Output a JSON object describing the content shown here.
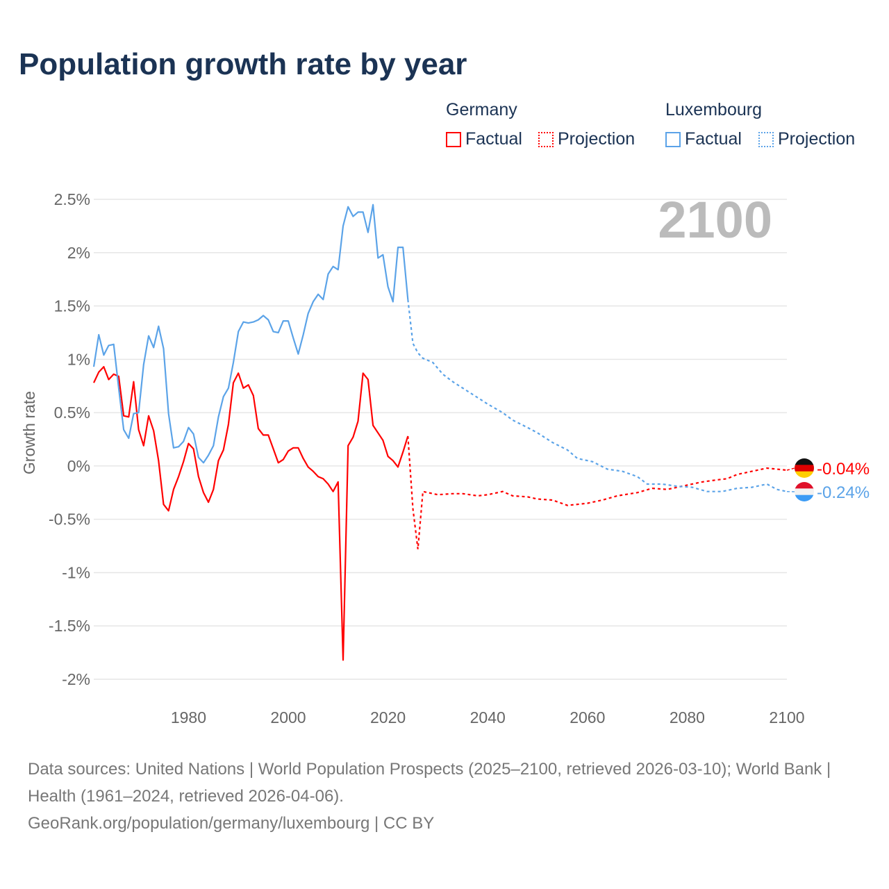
{
  "title": "Population growth rate by year",
  "legend": {
    "groups": [
      {
        "name": "Germany",
        "factual": "Factual",
        "projection": "Projection",
        "color": "#ff0000"
      },
      {
        "name": "Luxembourg",
        "factual": "Factual",
        "projection": "Projection",
        "color": "#5ba3e8"
      }
    ]
  },
  "footer": {
    "sources": "Data sources: United Nations | World Population Prospects (2025–2100, retrieved 2026-03-10); World Bank | Health (1961–2024, retrieved 2026-04-06).",
    "credit": "GeoRank.org/population/germany/luxembourg | CC BY"
  },
  "chart_data": {
    "type": "line",
    "title": "Population growth rate by year",
    "xlabel": "",
    "ylabel": "Growth rate",
    "year_label": "2100",
    "xlim": [
      1961,
      2100
    ],
    "ylim": [
      -2,
      2.5
    ],
    "x_ticks": [
      "1980",
      "2000",
      "2020",
      "2040",
      "2060",
      "2080",
      "2100"
    ],
    "x_tick_values": [
      1980,
      2000,
      2020,
      2040,
      2060,
      2080,
      2100
    ],
    "y_ticks": [
      "2.5%",
      "2%",
      "1.5%",
      "1%",
      "0.5%",
      "0%",
      "-0.5%",
      "-1%",
      "-1.5%",
      "-2%"
    ],
    "y_tick_values": [
      2.5,
      2,
      1.5,
      1,
      0.5,
      0,
      -0.5,
      -1,
      -1.5,
      -2
    ],
    "grid": true,
    "legend_position": "top-right",
    "series": [
      {
        "name": "Germany",
        "color": "#ff0000",
        "end_label": "-0.04%",
        "factual": {
          "start_year": 1961,
          "values": [
            0.78,
            0.88,
            0.93,
            0.81,
            0.86,
            0.84,
            0.47,
            0.46,
            0.79,
            0.34,
            0.19,
            0.47,
            0.33,
            0.05,
            -0.36,
            -0.42,
            -0.22,
            -0.1,
            0.04,
            0.21,
            0.16,
            -0.1,
            -0.25,
            -0.34,
            -0.22,
            0.05,
            0.15,
            0.39,
            0.78,
            0.87,
            0.73,
            0.76,
            0.66,
            0.35,
            0.29,
            0.29,
            0.16,
            0.03,
            0.06,
            0.14,
            0.17,
            0.17,
            0.07,
            -0.01,
            -0.05,
            -0.1,
            -0.12,
            -0.17,
            -0.24,
            -0.15,
            -1.82,
            0.19,
            0.27,
            0.42,
            0.87,
            0.81,
            0.38,
            0.31,
            0.24,
            0.09,
            0.05,
            -0.01,
            0.13,
            0.28
          ]
        },
        "projection": {
          "years": [
            2024,
            2025,
            2026,
            2027,
            2030,
            2033,
            2035,
            2038,
            2040,
            2043,
            2045,
            2048,
            2050,
            2053,
            2056,
            2060,
            2063,
            2066,
            2070,
            2073,
            2076,
            2080,
            2083,
            2086,
            2088,
            2090,
            2093,
            2096,
            2098,
            2100
          ],
          "values": [
            0.28,
            -0.4,
            -0.78,
            -0.24,
            -0.27,
            -0.26,
            -0.26,
            -0.28,
            -0.27,
            -0.24,
            -0.28,
            -0.29,
            -0.31,
            -0.32,
            -0.37,
            -0.35,
            -0.32,
            -0.28,
            -0.25,
            -0.21,
            -0.22,
            -0.18,
            -0.15,
            -0.13,
            -0.12,
            -0.08,
            -0.05,
            -0.02,
            -0.03,
            -0.04
          ]
        }
      },
      {
        "name": "Luxembourg",
        "color": "#5ba3e8",
        "end_label": "-0.24%",
        "factual": {
          "start_year": 1961,
          "values": [
            0.93,
            1.23,
            1.04,
            1.13,
            1.14,
            0.73,
            0.34,
            0.26,
            0.49,
            0.5,
            0.95,
            1.22,
            1.11,
            1.31,
            1.1,
            0.49,
            0.17,
            0.18,
            0.23,
            0.36,
            0.3,
            0.08,
            0.03,
            0.1,
            0.19,
            0.46,
            0.65,
            0.73,
            0.97,
            1.26,
            1.35,
            1.34,
            1.35,
            1.37,
            1.41,
            1.37,
            1.26,
            1.25,
            1.36,
            1.36,
            1.2,
            1.05,
            1.23,
            1.43,
            1.54,
            1.61,
            1.56,
            1.8,
            1.87,
            1.84,
            2.25,
            2.43,
            2.34,
            2.38,
            2.38,
            2.19,
            2.45,
            1.95,
            1.98,
            1.68,
            1.54,
            2.05,
            2.05,
            1.56
          ]
        },
        "projection": {
          "years": [
            2024,
            2025,
            2026,
            2027,
            2029,
            2031,
            2033,
            2035,
            2037,
            2040,
            2043,
            2045,
            2048,
            2050,
            2053,
            2056,
            2058,
            2061,
            2064,
            2067,
            2070,
            2072,
            2075,
            2078,
            2081,
            2084,
            2087,
            2090,
            2093,
            2096,
            2098,
            2100
          ],
          "values": [
            1.56,
            1.15,
            1.06,
            1.01,
            0.97,
            0.86,
            0.79,
            0.73,
            0.67,
            0.58,
            0.5,
            0.43,
            0.36,
            0.31,
            0.22,
            0.15,
            0.07,
            0.04,
            -0.03,
            -0.05,
            -0.1,
            -0.17,
            -0.17,
            -0.19,
            -0.2,
            -0.24,
            -0.24,
            -0.21,
            -0.2,
            -0.17,
            -0.22,
            -0.24
          ]
        }
      }
    ]
  }
}
